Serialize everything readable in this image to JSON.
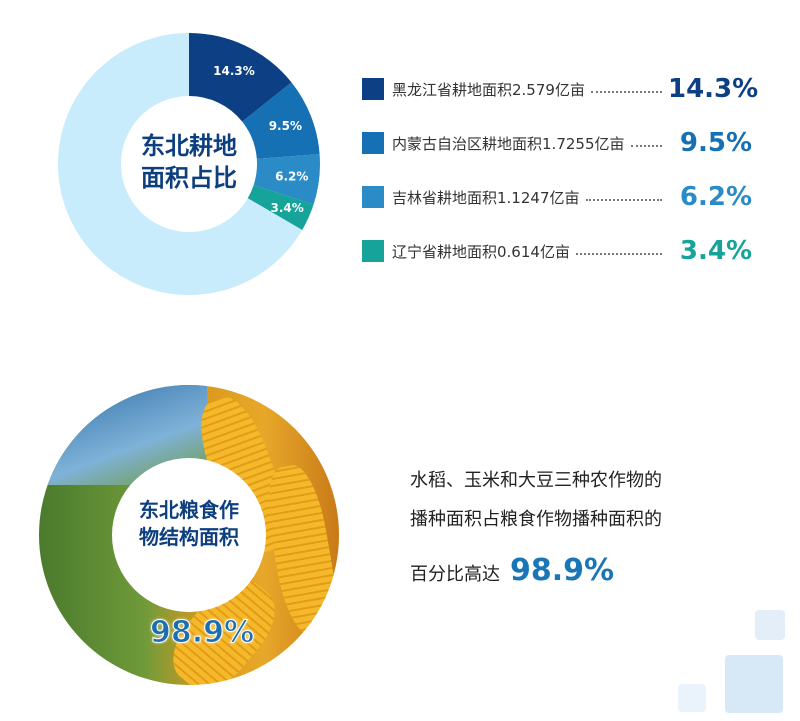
{
  "chart_data": [
    {
      "type": "pie",
      "title": "东北耕地面积占比",
      "slices": [
        {
          "label": "黑龙江省耕地面积2.579亿亩",
          "value": 14.3,
          "display": "14.3%",
          "color": "#0d3f85"
        },
        {
          "label": "内蒙古自治区耕地面积1.7255亿亩",
          "value": 9.5,
          "display": "9.5%",
          "color": "#1570b4"
        },
        {
          "label": "吉林省耕地面积1.1247亿亩",
          "value": 6.2,
          "display": "6.2%",
          "color": "#2b8bc6"
        },
        {
          "label": "辽宁省耕地面积0.614亿亩",
          "value": 3.4,
          "display": "3.4%",
          "color": "#15a39a"
        },
        {
          "label": "",
          "value": 66.6,
          "display": "",
          "color": "#c8ecfb"
        }
      ],
      "legend": "right"
    },
    {
      "type": "pie",
      "title": "东北粮食作物结构面积",
      "value": 98.9,
      "display": "98.9%"
    }
  ],
  "description": {
    "line1": "水稻、玉米和大豆三种农作物的",
    "line2": "播种面积占粮食作物播种面积的",
    "line3": "百分比高达",
    "pct": "98.9%"
  }
}
